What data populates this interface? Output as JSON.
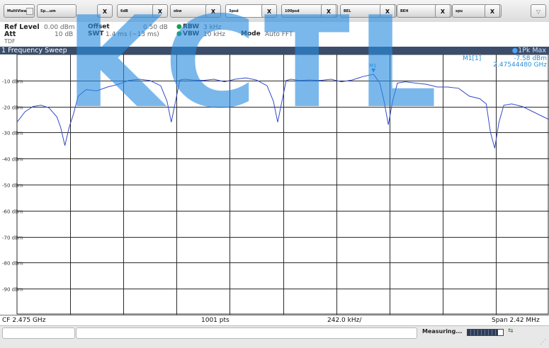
{
  "tabs": [
    {
      "label": "MultiView",
      "active": false
    },
    {
      "label": "Sp...um",
      "active": false
    },
    {
      "label": "6dB",
      "active": false
    },
    {
      "label": "obw",
      "active": false
    },
    {
      "label": "3psd",
      "active": true
    },
    {
      "label": "100psd",
      "active": false
    },
    {
      "label": "BEL",
      "active": false
    },
    {
      "label": "BEH",
      "active": false
    },
    {
      "label": "spu",
      "active": false
    }
  ],
  "tab_close_label": "X",
  "menu_label": "▽",
  "settings": {
    "ref_level_label": "Ref Level",
    "ref_level_value": "0.00 dBm",
    "offset_label": "Offset",
    "offset_value": "0.50 dB",
    "rbw_label": "RBW",
    "rbw_value": "3 kHz",
    "att_label": "Att",
    "att_value": "10 dB",
    "swt_label": "SWT",
    "swt_value": "1.4 ms (~13 ms)",
    "vbw_label": "VBW",
    "vbw_value": "10 kHz",
    "mode_label": "Mode",
    "mode_value": "Auto FFT",
    "tdf_label": "TDF"
  },
  "sweep": {
    "title": "1 Frequency Sweep",
    "trace_label": "1Pk Max"
  },
  "marker": {
    "name": "M1",
    "readout_label": "M1[1]",
    "level": "-7.58 dBm",
    "frequency": "2.47544480 GHz"
  },
  "colors": {
    "trace": "#3448c8",
    "grid": "#2a2a2a",
    "marker": "#2a8fd6",
    "header_bg": "#3b4d6b",
    "watermark": "#288ce1"
  },
  "watermark_text": "KCTL",
  "chart_data": {
    "type": "line",
    "xlim": [
      0,
      10
    ],
    "ylim": [
      -100,
      0
    ],
    "yticks": [
      -10,
      -20,
      -30,
      -40,
      -50,
      -60,
      -70,
      -80,
      -90
    ],
    "ytick_labels": [
      "-10 dBm",
      "-20 dBm",
      "-30 dBm",
      "-40 dBm",
      "-50 dBm",
      "-60 dBm",
      "-70 dBm",
      "-80 dBm",
      "-90 dBm"
    ],
    "grid": true,
    "series": [
      {
        "name": "1Pk Max",
        "x": [
          0,
          0.15,
          0.3,
          0.45,
          0.6,
          0.75,
          0.82,
          0.9,
          0.98,
          1.06,
          1.15,
          1.3,
          1.5,
          1.7,
          1.9,
          2.1,
          2.3,
          2.5,
          2.7,
          2.82,
          2.9,
          2.98,
          3.06,
          3.15,
          3.3,
          3.5,
          3.7,
          3.9,
          4.1,
          4.3,
          4.5,
          4.7,
          4.82,
          4.9,
          4.98,
          5.06,
          5.15,
          5.3,
          5.5,
          5.7,
          5.9,
          6.1,
          6.3,
          6.5,
          6.7,
          6.82,
          6.9,
          6.98,
          7.06,
          7.15,
          7.3,
          7.5,
          7.7,
          7.9,
          8.1,
          8.3,
          8.5,
          8.7,
          8.82,
          8.9,
          8.98,
          9.06,
          9.15,
          9.3,
          9.5,
          9.7,
          9.85,
          10
        ],
        "y": [
          -26,
          -22,
          -20,
          -19.5,
          -20.5,
          -24,
          -28,
          -35,
          -28,
          -23,
          -16,
          -13.5,
          -14,
          -12.5,
          -11.5,
          -10,
          -9.5,
          -10,
          -12,
          -18,
          -26,
          -18,
          -9.8,
          -9.5,
          -9.8,
          -10,
          -9.5,
          -10.5,
          -9.5,
          -9,
          -9.8,
          -12,
          -18,
          -26,
          -18,
          -10,
          -9.5,
          -10,
          -9.8,
          -10,
          -9.5,
          -10.5,
          -9.8,
          -8.5,
          -7.58,
          -11,
          -18,
          -27,
          -18,
          -11,
          -10.5,
          -11,
          -11.5,
          -12.5,
          -12.5,
          -13,
          -16,
          -17,
          -19,
          -30,
          -36,
          -26,
          -19.5,
          -19,
          -20,
          -22,
          -23.5,
          -25
        ]
      }
    ],
    "marker": {
      "x": 6.7,
      "y": -7.58
    },
    "footer": {
      "center": "CF 2.475 GHz",
      "points": "1001 pts",
      "per_div": "242.0 kHz/",
      "span": "Span 2.42 MHz"
    }
  },
  "status": {
    "measuring_label": "Measuring...",
    "progress_fraction": 0.85
  }
}
